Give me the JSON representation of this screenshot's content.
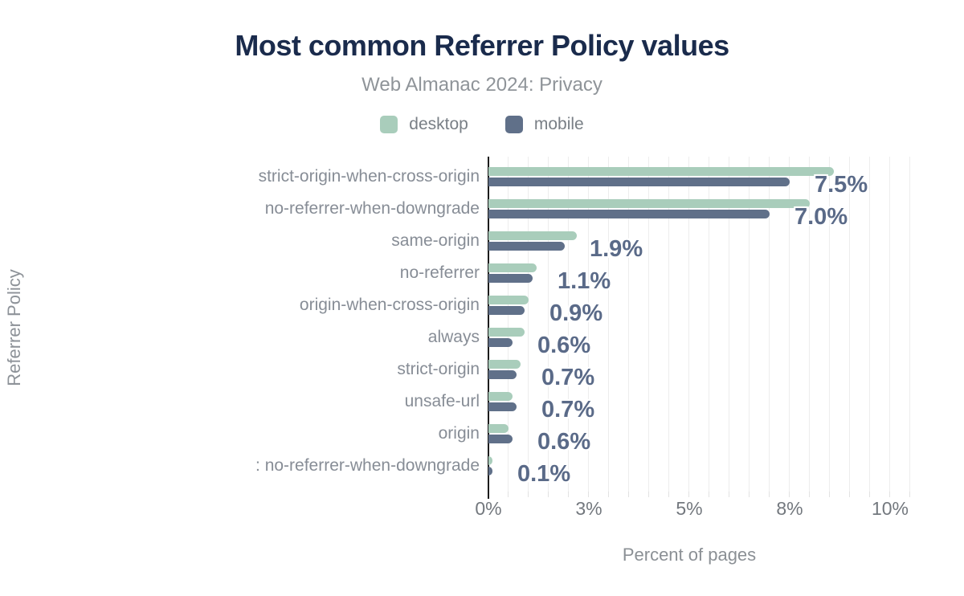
{
  "header": {
    "title": "Most common Referrer Policy values",
    "subtitle": "Web Almanac 2024: Privacy"
  },
  "legend": [
    {
      "label": "desktop",
      "color": "#a9cdbb"
    },
    {
      "label": "mobile",
      "color": "#607089"
    }
  ],
  "axes": {
    "y_label": "Referrer Policy",
    "x_label": "Percent of pages"
  },
  "chart_data": {
    "type": "bar",
    "orientation": "horizontal",
    "title": "Most common Referrer Policy values",
    "subtitle": "Web Almanac 2024: Privacy",
    "xlabel": "Percent of pages",
    "ylabel": "Referrer Policy",
    "xlim": [
      0,
      10.5
    ],
    "grid": true,
    "legend_position": "top",
    "x_tick_values": [
      0,
      2.5,
      5,
      7.5,
      10
    ],
    "x_tick_labels": [
      "0%",
      "3%",
      "5%",
      "8%",
      "10%"
    ],
    "categories": [
      "strict-origin-when-cross-origin",
      "no-referrer-when-downgrade",
      "same-origin",
      "no-referrer",
      "origin-when-cross-origin",
      "always",
      "strict-origin",
      "unsafe-url",
      "origin",
      ": no-referrer-when-downgrade"
    ],
    "series": [
      {
        "name": "desktop",
        "color": "#a9cdbb",
        "values": [
          8.6,
          8.0,
          2.2,
          1.2,
          1.0,
          0.9,
          0.8,
          0.6,
          0.5,
          0.1
        ]
      },
      {
        "name": "mobile",
        "color": "#607089",
        "values": [
          7.5,
          7.0,
          1.9,
          1.1,
          0.9,
          0.6,
          0.7,
          0.7,
          0.6,
          0.1
        ]
      }
    ],
    "value_labels": [
      "7.5%",
      "7.0%",
      "1.9%",
      "1.1%",
      "0.9%",
      "0.6%",
      "0.7%",
      "0.7%",
      "0.6%",
      "0.1%"
    ]
  }
}
